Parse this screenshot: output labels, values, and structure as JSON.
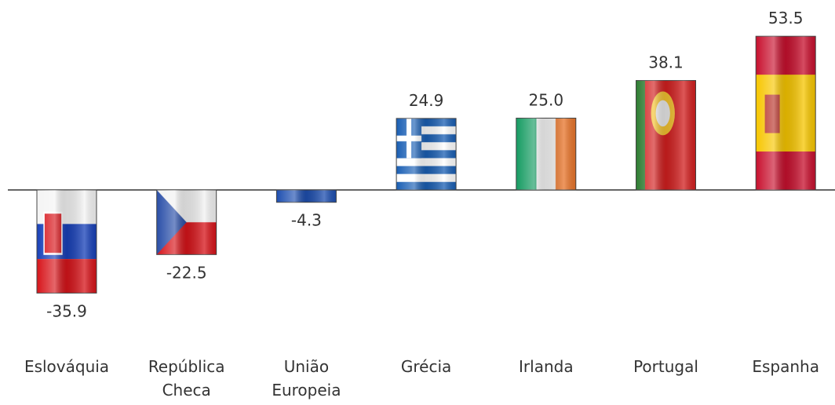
{
  "chart_data": {
    "type": "bar",
    "categories": [
      "Eslováquia",
      "República Checa",
      "União Europeia",
      "Grécia",
      "Irlanda",
      "Portugal",
      "Espanha"
    ],
    "values": [
      -35.9,
      -22.5,
      -4.3,
      24.9,
      25.0,
      38.1,
      53.5
    ],
    "value_labels": [
      "-35.9",
      "-22.5",
      "-4.3",
      "24.9",
      "25.0",
      "38.1",
      "53.5"
    ]
  }
}
